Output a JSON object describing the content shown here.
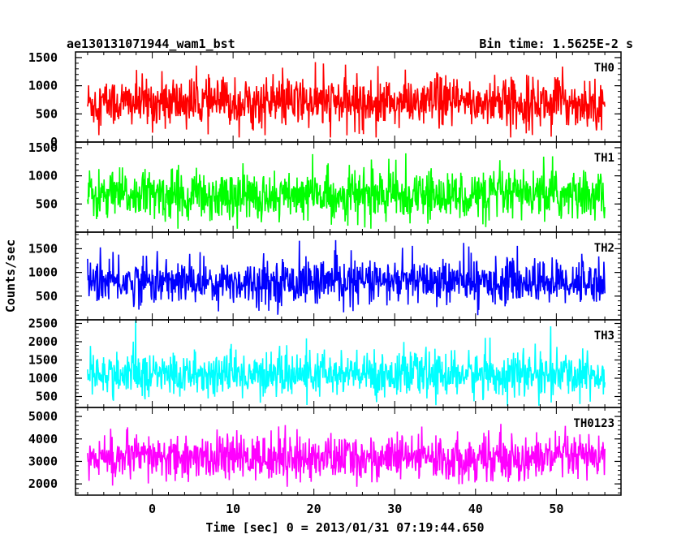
{
  "chart_data": {
    "type": "line",
    "layout": "stacked-panels",
    "title_left": "ae130131071944_wam1_bst",
    "title_right": "Bin time: 1.5625E-2 s",
    "xlabel": "Time [sec] 0 = 2013/01/31 07:19:44.650",
    "ylabel": "Counts/sec",
    "xlim": [
      -9.5,
      58
    ],
    "x_ticks": [
      0,
      10,
      20,
      30,
      40,
      50
    ],
    "x_data_range": [
      -8,
      56
    ],
    "bin_time": 0.015625,
    "grid": false,
    "panels": [
      {
        "name": "TH0",
        "color": "#ff0000",
        "ylim": [
          0,
          1600
        ],
        "y_ticks": [
          0,
          500,
          1000,
          1500
        ],
        "series": {
          "mean": 700,
          "spread": 220,
          "min": 80,
          "max": 1600
        }
      },
      {
        "name": "TH1",
        "color": "#00ff00",
        "ylim": [
          0,
          1600
        ],
        "y_ticks": [
          500,
          1000,
          1500
        ],
        "series": {
          "mean": 650,
          "spread": 220,
          "min": 60,
          "max": 1600
        }
      },
      {
        "name": "TH2",
        "color": "#0000ff",
        "ylim": [
          0,
          1850
        ],
        "y_ticks": [
          500,
          1000,
          1500
        ],
        "series": {
          "mean": 800,
          "spread": 230,
          "min": 100,
          "max": 1850
        }
      },
      {
        "name": "TH3",
        "color": "#00ffff",
        "ylim": [
          200,
          2600
        ],
        "y_ticks": [
          500,
          1000,
          1500,
          2000,
          2500
        ],
        "series": {
          "mean": 1100,
          "spread": 300,
          "min": 250,
          "max": 2600
        }
      },
      {
        "name": "TH0123",
        "color": "#ff00ff",
        "ylim": [
          1500,
          5400
        ],
        "y_ticks": [
          2000,
          3000,
          4000,
          5000
        ],
        "series": {
          "mean": 3150,
          "spread": 500,
          "min": 1650,
          "max": 5400
        }
      }
    ]
  }
}
